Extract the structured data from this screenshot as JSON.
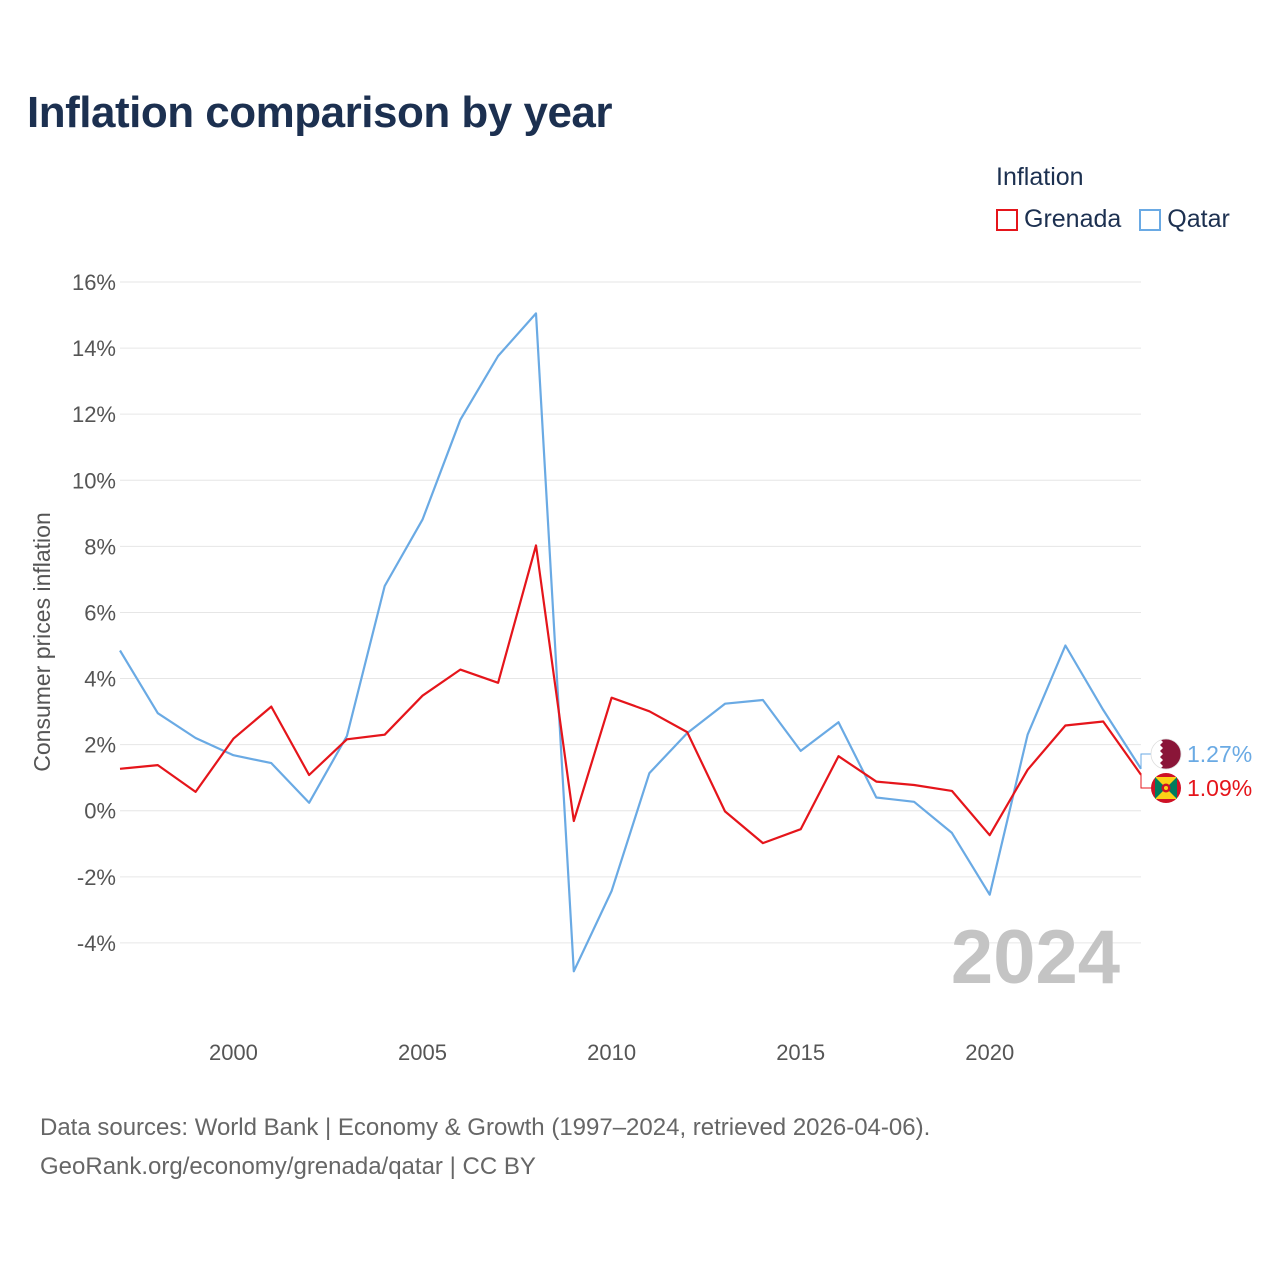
{
  "colors": {
    "grenada": "#e5151b",
    "qatar": "#6aaae4",
    "title": "#1c3050",
    "grid": "#e6e6e6",
    "watermark": "#c4c4c4"
  },
  "legend": {
    "title": "Inflation",
    "items": [
      {
        "label": "Grenada",
        "color": "#e5151b"
      },
      {
        "label": "Qatar",
        "color": "#6aaae4"
      }
    ]
  },
  "footer": {
    "line1": "Data sources: World Bank | Economy & Growth (1997–2024, retrieved 2026-04-06).",
    "line2": "GeoRank.org/economy/grenada/qatar | CC BY"
  },
  "chart_data": {
    "type": "line",
    "title": "Inflation comparison by year",
    "xlabel": "",
    "ylabel": "Consumer prices inflation",
    "watermark": "2024",
    "x": [
      1997,
      1998,
      1999,
      2000,
      2001,
      2002,
      2003,
      2004,
      2005,
      2006,
      2007,
      2008,
      2009,
      2010,
      2011,
      2012,
      2013,
      2014,
      2015,
      2016,
      2017,
      2018,
      2019,
      2020,
      2021,
      2022,
      2023,
      2024
    ],
    "xlim": [
      1997,
      2024
    ],
    "ylim": [
      -6,
      16
    ],
    "x_ticks": [
      2000,
      2005,
      2010,
      2015,
      2020
    ],
    "y_ticks": [
      -4,
      -2,
      0,
      2,
      4,
      6,
      8,
      10,
      12,
      14,
      16
    ],
    "y_tick_labels": [
      "-4%",
      "-2%",
      "0%",
      "2%",
      "4%",
      "6%",
      "8%",
      "10%",
      "12%",
      "14%",
      "16%"
    ],
    "grid": true,
    "series": [
      {
        "name": "Qatar",
        "color": "#6aaae4",
        "end_label": "1.27%",
        "flag": "qatar-flag",
        "values": [
          4.85,
          2.95,
          2.2,
          1.68,
          1.44,
          0.24,
          2.26,
          6.8,
          8.81,
          11.83,
          13.76,
          15.05,
          -4.86,
          -2.43,
          1.14,
          2.35,
          3.24,
          3.35,
          1.81,
          2.68,
          0.4,
          0.27,
          -0.67,
          -2.54,
          2.3,
          5.0,
          3.05,
          1.27
        ]
      },
      {
        "name": "Grenada",
        "color": "#e5151b",
        "end_label": "1.09%",
        "flag": "grenada-flag",
        "values": [
          1.27,
          1.38,
          0.57,
          2.18,
          3.15,
          1.08,
          2.16,
          2.3,
          3.48,
          4.27,
          3.87,
          8.03,
          -0.31,
          3.42,
          3.01,
          2.38,
          -0.02,
          -0.98,
          -0.56,
          1.65,
          0.88,
          0.78,
          0.6,
          -0.74,
          1.24,
          2.58,
          2.7,
          1.09
        ]
      }
    ]
  }
}
